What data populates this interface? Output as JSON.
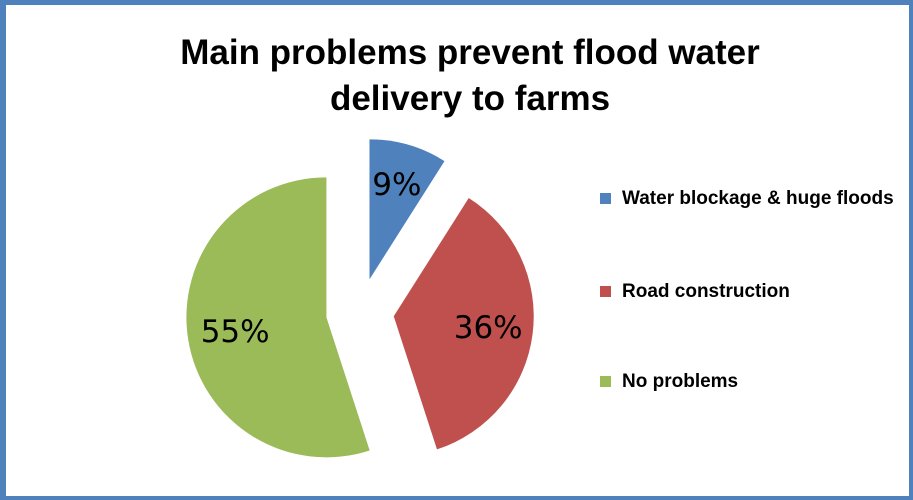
{
  "chart_data": {
    "type": "pie",
    "title": "Main problems prevent flood water delivery to farms",
    "title_lines": [
      "Main problems prevent flood water",
      "delivery to farms"
    ],
    "categories": [
      "Water blockage & huge floods",
      "Road construction",
      "No problems"
    ],
    "values": [
      9,
      36,
      55
    ],
    "labels": [
      "9%",
      "36%",
      "55%"
    ],
    "colors": [
      "#4f81bd",
      "#c0504d",
      "#9bbb59"
    ],
    "exploded": true,
    "legend_position": "right"
  },
  "legend": {
    "items": [
      {
        "label": "Water blockage & huge floods",
        "color": "#4f81bd"
      },
      {
        "label": "Road construction",
        "color": "#c0504d"
      },
      {
        "label": "No problems",
        "color": "#9bbb59"
      }
    ]
  },
  "frame_color": "#4f81bd"
}
